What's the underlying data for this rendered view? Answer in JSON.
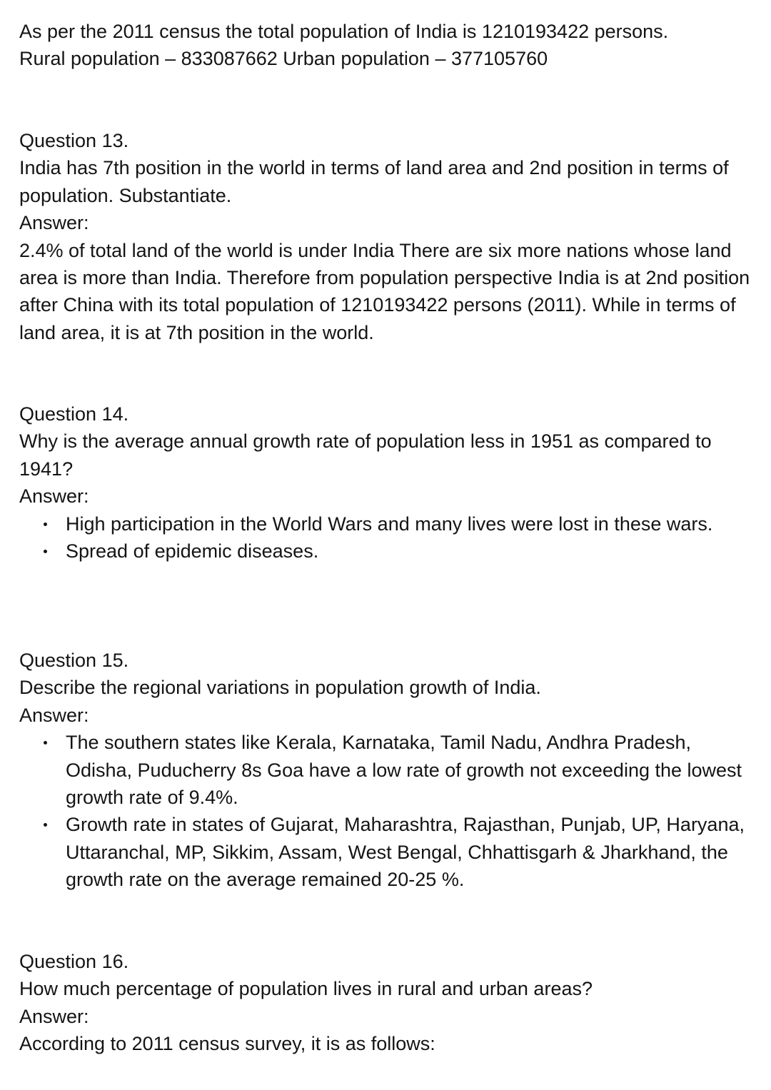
{
  "intro": {
    "line1": "As per the 2011 census the total population of India is 1210193422 persons.",
    "line2": "Rural population – 833087662 Urban population – 377105760"
  },
  "q13": {
    "label": "Question 13.",
    "question": "India has 7th position in the world in terms of land area and 2nd position in terms of population. Substantiate.",
    "answer_label": "Answer:",
    "answer": "2.4% of total land of the world is under India There are six more nations whose land area is more than India. Therefore from population perspective India is at 2nd position after China with its total population of 1210193422 persons (2011). While in terms of land area, it is at 7th position in the world."
  },
  "q14": {
    "label": "Question 14.",
    "question": "Why is the average annual growth rate of population less in 1951 as compared to 1941?",
    "answer_label": "Answer:",
    "points": [
      "High participation in the World Wars and many lives were lost in these wars.",
      "Spread of epidemic diseases."
    ]
  },
  "q15": {
    "label": "Question 15.",
    "question": "Describe the regional variations in population growth of India.",
    "answer_label": "Answer:",
    "points": [
      "The southern states like Kerala, Karnataka, Tamil Nadu, Andhra Pradesh, Odisha, Puducherry 8s Goa have a low rate of growth not exceeding the lowest growth rate of 9.4%.",
      "Growth rate in states of Gujarat, Maharashtra, Rajasthan, Punjab, UP, Haryana, Uttaranchal, MP, Sikkim, Assam, West Bengal, Chhattisgarh & Jharkhand, the growth rate on the average remained 20-25 %."
    ]
  },
  "q16": {
    "label": "Question 16.",
    "question": "How much percentage of population lives in rural and urban areas?",
    "answer_label": "Answer:",
    "answer": "According to 2011 census survey, it is as follows:"
  }
}
